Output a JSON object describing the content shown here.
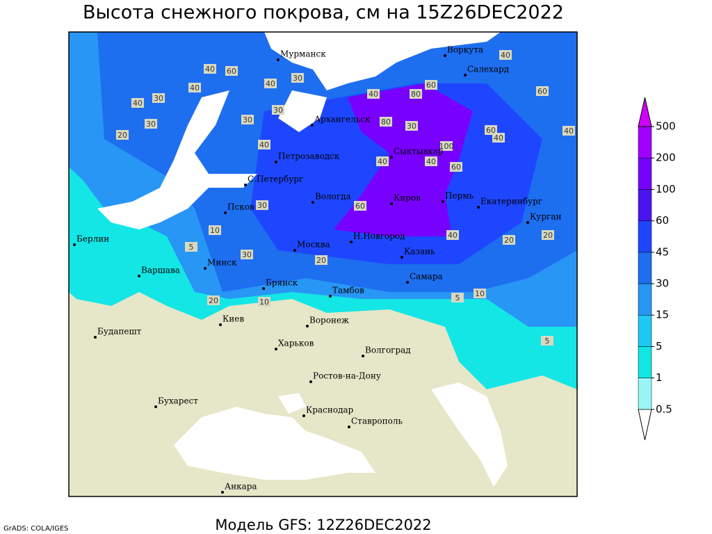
{
  "header": {
    "title": "Высота снежного покрова, см на 15Z26DEC2022"
  },
  "footer": {
    "credit": "GrADS: COLA/IGES",
    "model": "Модель GFS: 12Z26DEC2022"
  },
  "colorbar": {
    "levels": [
      0.5,
      1,
      5,
      15,
      30,
      45,
      60,
      100,
      200,
      500
    ],
    "colors": [
      "#ffffff",
      "#9af5f5",
      "#14e6e6",
      "#1ec8f5",
      "#2896f5",
      "#1e6ef0",
      "#1e46ff",
      "#4a14f0",
      "#7800ff",
      "#a000ff",
      "#d000ff"
    ]
  },
  "cities": [
    "Мурманск",
    "Воркута",
    "Салехард",
    "Архангельск",
    "Петрозаводск",
    "Сыктывкар",
    "С.Петербург",
    "Вологда",
    "Киров",
    "Пермь",
    "Екатеринбург",
    "Курган",
    "Псков",
    "Берлин",
    "Москва",
    "Н.Новгород",
    "Казань",
    "Минск",
    "Варшава",
    "Брянск",
    "Тамбов",
    "Самара",
    "Киев",
    "Воронеж",
    "Будапешт",
    "Харьков",
    "Волгоград",
    "Ростов-на-Дону",
    "Бухарест",
    "Краснодар",
    "Ставрополь",
    "Анкара"
  ],
  "contour_labels": [
    "40",
    "60",
    "40",
    "30",
    "40",
    "30",
    "40",
    "30",
    "20",
    "30",
    "40",
    "30",
    "40",
    "80",
    "60",
    "80",
    "30",
    "60",
    "40",
    "100",
    "40",
    "60",
    "40",
    "30",
    "60",
    "10",
    "5",
    "20",
    "30",
    "20",
    "40",
    "20",
    "10",
    "5",
    "10",
    "5",
    "20",
    "60",
    "40",
    "40"
  ]
}
